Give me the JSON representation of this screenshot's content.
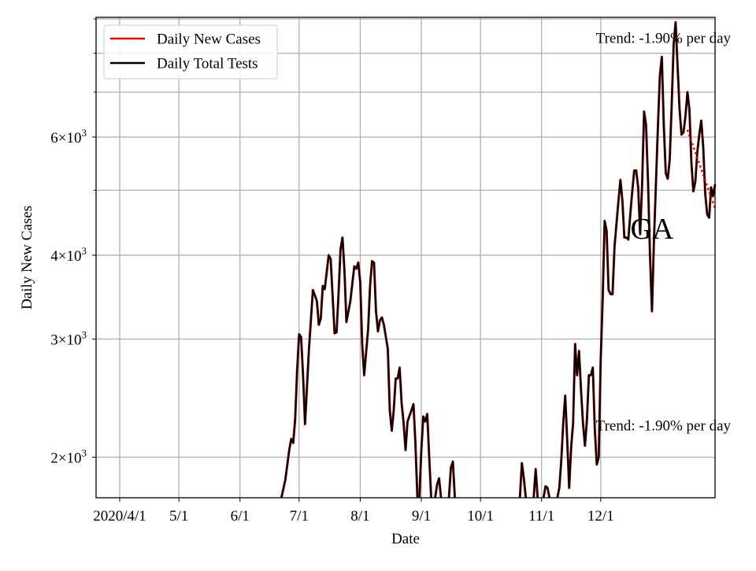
{
  "chart_data": {
    "type": "line",
    "title": "",
    "xlabel": "Date",
    "ylabel": "Daily New Cases",
    "yscale": "log",
    "ylim": [
      1740,
      9050
    ],
    "xlim": [
      "2020-03-20",
      "2021-01-28"
    ],
    "grid": true,
    "legend_position": "top-left",
    "x_ticks": [
      {
        "date": "2020-04-01",
        "label": "2020/4/1"
      },
      {
        "date": "2020-05-01",
        "label": "5/1"
      },
      {
        "date": "2020-06-01",
        "label": "6/1"
      },
      {
        "date": "2020-07-01",
        "label": "7/1"
      },
      {
        "date": "2020-08-01",
        "label": "8/1"
      },
      {
        "date": "2020-09-01",
        "label": "9/1"
      },
      {
        "date": "2020-10-01",
        "label": "10/1"
      },
      {
        "date": "2020-11-01",
        "label": "11/1"
      },
      {
        "date": "2020-12-01",
        "label": "12/1"
      }
    ],
    "y_ticks": [
      {
        "value": 2000,
        "coef": "2",
        "exp": "3"
      },
      {
        "value": 3000,
        "coef": "3",
        "exp": "3"
      },
      {
        "value": 4000,
        "coef": "4",
        "exp": "3"
      },
      {
        "value": 6000,
        "coef": "6",
        "exp": "3"
      }
    ],
    "y_minor_ticks": [
      5000,
      7000,
      8000,
      9000
    ],
    "series": [
      {
        "name": "Daily New Cases",
        "color": "#dd0000"
      },
      {
        "name": "Daily Total Tests",
        "color": "#000000"
      }
    ],
    "line_points": [
      [
        "2020-06-22",
        1740
      ],
      [
        "2020-06-24",
        1850
      ],
      [
        "2020-06-26",
        2050
      ],
      [
        "2020-06-27",
        2130
      ],
      [
        "2020-06-28",
        2100
      ],
      [
        "2020-06-29",
        2280
      ],
      [
        "2020-06-30",
        2700
      ],
      [
        "2020-07-01",
        3050
      ],
      [
        "2020-07-02",
        3020
      ],
      [
        "2020-07-03",
        2650
      ],
      [
        "2020-07-04",
        2240
      ],
      [
        "2020-07-06",
        2900
      ],
      [
        "2020-07-08",
        3550
      ],
      [
        "2020-07-10",
        3420
      ],
      [
        "2020-07-11",
        3150
      ],
      [
        "2020-07-12",
        3220
      ],
      [
        "2020-07-13",
        3600
      ],
      [
        "2020-07-14",
        3560
      ],
      [
        "2020-07-16",
        4000
      ],
      [
        "2020-07-17",
        3950
      ],
      [
        "2020-07-19",
        3060
      ],
      [
        "2020-07-20",
        3070
      ],
      [
        "2020-07-21",
        3500
      ],
      [
        "2020-07-22",
        4080
      ],
      [
        "2020-07-23",
        4250
      ],
      [
        "2020-07-24",
        3800
      ],
      [
        "2020-07-25",
        3180
      ],
      [
        "2020-07-27",
        3420
      ],
      [
        "2020-07-29",
        3850
      ],
      [
        "2020-07-30",
        3820
      ],
      [
        "2020-07-31",
        3900
      ],
      [
        "2020-08-01",
        3650
      ],
      [
        "2020-08-02",
        2950
      ],
      [
        "2020-08-03",
        2650
      ],
      [
        "2020-08-05",
        3100
      ],
      [
        "2020-08-06",
        3600
      ],
      [
        "2020-08-07",
        3920
      ],
      [
        "2020-08-08",
        3900
      ],
      [
        "2020-08-09",
        3300
      ],
      [
        "2020-08-10",
        3080
      ],
      [
        "2020-08-11",
        3200
      ],
      [
        "2020-08-12",
        3230
      ],
      [
        "2020-08-13",
        3150
      ],
      [
        "2020-08-15",
        2900
      ],
      [
        "2020-08-16",
        2350
      ],
      [
        "2020-08-17",
        2190
      ],
      [
        "2020-08-18",
        2350
      ],
      [
        "2020-08-19",
        2620
      ],
      [
        "2020-08-20",
        2620
      ],
      [
        "2020-08-21",
        2720
      ],
      [
        "2020-08-22",
        2410
      ],
      [
        "2020-08-23",
        2250
      ],
      [
        "2020-08-24",
        2050
      ],
      [
        "2020-08-25",
        2260
      ],
      [
        "2020-08-27",
        2350
      ],
      [
        "2020-08-28",
        2400
      ],
      [
        "2020-08-29",
        2100
      ],
      [
        "2020-08-30",
        1740
      ],
      null,
      [
        "2020-08-31",
        1740
      ],
      [
        "2020-09-01",
        2050
      ],
      [
        "2020-09-02",
        2300
      ],
      [
        "2020-09-03",
        2260
      ],
      [
        "2020-09-04",
        2320
      ],
      [
        "2020-09-05",
        2000
      ],
      [
        "2020-09-06",
        1740
      ],
      null,
      [
        "2020-09-08",
        1740
      ],
      [
        "2020-09-09",
        1820
      ],
      [
        "2020-09-10",
        1860
      ],
      [
        "2020-09-11",
        1740
      ],
      null,
      [
        "2020-09-15",
        1740
      ],
      [
        "2020-09-16",
        1930
      ],
      [
        "2020-09-17",
        1970
      ],
      [
        "2020-09-18",
        1740
      ],
      null,
      [
        "2020-10-21",
        1740
      ],
      [
        "2020-10-22",
        1960
      ],
      [
        "2020-10-23",
        1860
      ],
      [
        "2020-10-24",
        1740
      ],
      null,
      [
        "2020-10-28",
        1740
      ],
      [
        "2020-10-29",
        1920
      ],
      [
        "2020-10-30",
        1740
      ],
      null,
      [
        "2020-11-02",
        1740
      ],
      [
        "2020-11-03",
        1810
      ],
      [
        "2020-11-04",
        1800
      ],
      [
        "2020-11-05",
        1740
      ],
      null,
      [
        "2020-11-09",
        1740
      ],
      [
        "2020-11-10",
        1800
      ],
      [
        "2020-11-11",
        1980
      ],
      [
        "2020-11-12",
        2250
      ],
      [
        "2020-11-13",
        2470
      ],
      [
        "2020-11-14",
        2120
      ],
      [
        "2020-11-15",
        1800
      ],
      [
        "2020-11-16",
        2070
      ],
      [
        "2020-11-17",
        2250
      ],
      [
        "2020-11-18",
        2950
      ],
      [
        "2020-11-19",
        2650
      ],
      [
        "2020-11-20",
        2880
      ],
      [
        "2020-11-21",
        2520
      ],
      [
        "2020-11-22",
        2250
      ],
      [
        "2020-11-23",
        2080
      ],
      [
        "2020-11-24",
        2270
      ],
      [
        "2020-11-25",
        2650
      ],
      [
        "2020-11-26",
        2650
      ],
      [
        "2020-11-27",
        2720
      ],
      [
        "2020-11-28",
        2200
      ],
      [
        "2020-11-29",
        1950
      ],
      [
        "2020-11-30",
        2000
      ],
      [
        "2020-12-01",
        2800
      ],
      [
        "2020-12-02",
        3450
      ],
      [
        "2020-12-03",
        4500
      ],
      [
        "2020-12-04",
        4350
      ],
      [
        "2020-12-05",
        3550
      ],
      [
        "2020-12-06",
        3500
      ],
      [
        "2020-12-07",
        3500
      ],
      [
        "2020-12-08",
        4120
      ],
      [
        "2020-12-10",
        4820
      ],
      [
        "2020-12-11",
        5180
      ],
      [
        "2020-12-12",
        4820
      ],
      [
        "2020-12-13",
        4250
      ],
      [
        "2020-12-14",
        4250
      ],
      [
        "2020-12-15",
        4220
      ],
      [
        "2020-12-16",
        4600
      ],
      [
        "2020-12-17",
        4980
      ],
      [
        "2020-12-18",
        5350
      ],
      [
        "2020-12-19",
        5350
      ],
      [
        "2020-12-20",
        5050
      ],
      [
        "2020-12-21",
        4300
      ],
      [
        "2020-12-22",
        5100
      ],
      [
        "2020-12-23",
        6550
      ],
      [
        "2020-12-24",
        6250
      ],
      [
        "2020-12-25",
        5150
      ],
      [
        "2020-12-26",
        4000
      ],
      [
        "2020-12-27",
        3300
      ],
      [
        "2020-12-28",
        4200
      ],
      [
        "2020-12-29",
        5100
      ],
      [
        "2020-12-30",
        6200
      ],
      [
        "2020-12-31",
        7400
      ],
      [
        "2021-01-01",
        7900
      ],
      [
        "2021-01-02",
        6250
      ],
      [
        "2021-01-03",
        5300
      ],
      [
        "2021-01-04",
        5200
      ],
      [
        "2021-01-05",
        5550
      ],
      [
        "2021-01-06",
        6700
      ],
      [
        "2021-01-07",
        8250
      ],
      [
        "2021-01-08",
        8900
      ],
      [
        "2021-01-09",
        7650
      ],
      [
        "2021-01-10",
        6600
      ],
      [
        "2021-01-11",
        6050
      ],
      [
        "2021-01-12",
        6100
      ],
      [
        "2021-01-13",
        6450
      ],
      [
        "2021-01-14",
        7000
      ],
      [
        "2021-01-15",
        6600
      ],
      [
        "2021-01-16",
        5500
      ],
      [
        "2021-01-17",
        4980
      ],
      [
        "2021-01-18",
        5150
      ],
      [
        "2021-01-19",
        5700
      ],
      [
        "2021-01-20",
        6050
      ],
      [
        "2021-01-21",
        6350
      ],
      [
        "2021-01-22",
        5800
      ],
      [
        "2021-01-23",
        4950
      ],
      [
        "2021-01-24",
        4600
      ],
      [
        "2021-01-25",
        4550
      ],
      [
        "2021-01-26",
        5050
      ],
      [
        "2021-01-27",
        4900
      ],
      [
        "2021-01-28",
        5100
      ]
    ],
    "trend_line": {
      "color": "#dd0000",
      "style": "dotted",
      "points": [
        [
          "2021-01-14",
          6150
        ],
        [
          "2021-01-28",
          4700
        ]
      ]
    },
    "annotations": [
      {
        "text": "Trend: -1.90% per day",
        "position": "top-right"
      },
      {
        "text": "Trend: -1.90% per day",
        "position": "lower-right"
      },
      {
        "text": "GA",
        "position": "right"
      }
    ]
  }
}
